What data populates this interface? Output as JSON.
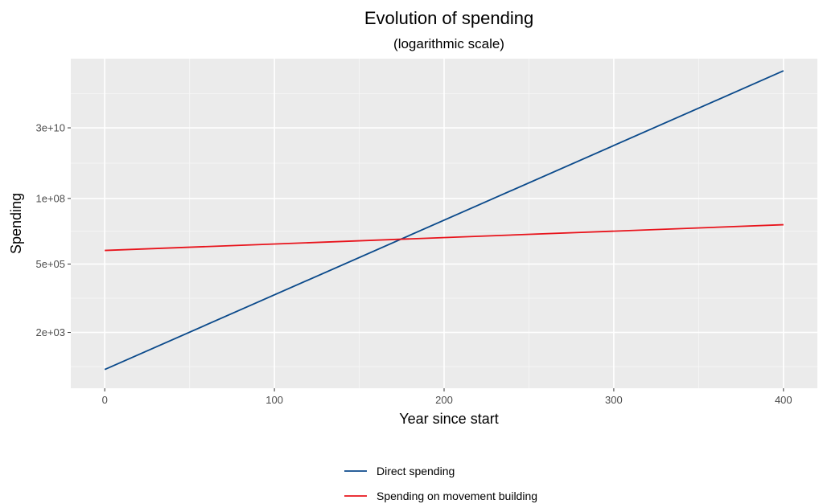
{
  "chart_data": {
    "type": "line",
    "title": "Evolution of spending",
    "subtitle": "(logarithmic scale)",
    "xlabel": "Year since start",
    "ylabel": "Spending",
    "x_ticks": [
      0,
      100,
      200,
      300,
      400
    ],
    "y_scale": "log",
    "y_ticks": [
      {
        "value": 2000,
        "label": "2e+03"
      },
      {
        "value": 500000,
        "label": "5e+05"
      },
      {
        "value": 100000000,
        "label": "1e+08"
      },
      {
        "value": 30000000000,
        "label": "3e+10"
      }
    ],
    "xlim": [
      -20,
      420
    ],
    "ylim": [
      22,
      8000000000000
    ],
    "grid": true,
    "legend_position": "bottom",
    "series": [
      {
        "name": "Direct spending",
        "color": "#0b4a8b",
        "x": [
          0,
          400
        ],
        "y": [
          100,
          3000000000000
        ]
      },
      {
        "name": "Spending on movement building",
        "color": "#e8141c",
        "x": [
          0,
          400
        ],
        "y": [
          1500000,
          12000000
        ]
      }
    ]
  }
}
